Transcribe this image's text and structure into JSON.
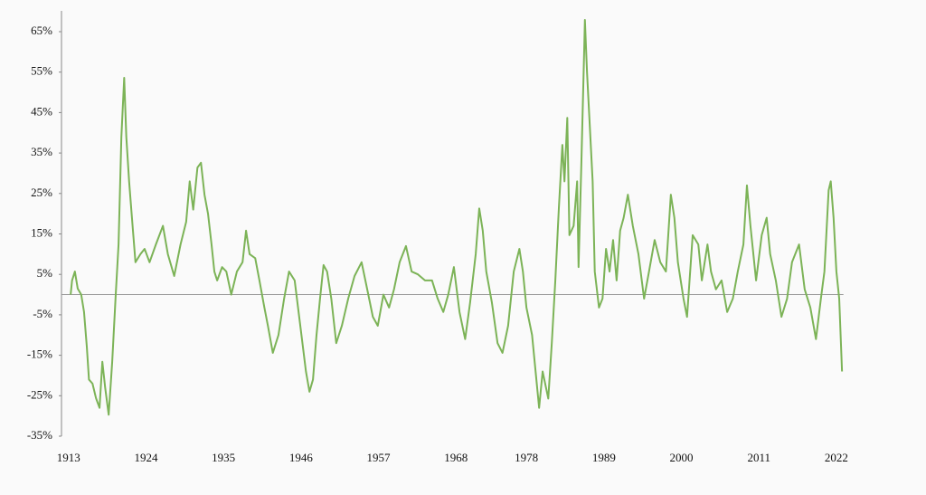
{
  "chart_data": {
    "type": "line",
    "x": [
      1913.3,
      1913.5,
      1913.9,
      1914.3,
      1914.8,
      1915.2,
      1915.6,
      1915.9,
      1916.4,
      1916.9,
      1917.4,
      1917.8,
      1918.2,
      1918.7,
      1919.2,
      1919.7,
      1920.1,
      1920.5,
      1920.9,
      1921.2,
      1921.6,
      1922.0,
      1922.5,
      1923.2,
      1923.8,
      1924.5,
      1925.4,
      1926.4,
      1927.1,
      1928.0,
      1928.9,
      1929.7,
      1930.2,
      1930.7,
      1931.3,
      1931.8,
      1932.3,
      1932.8,
      1933.3,
      1933.7,
      1934.1,
      1934.8,
      1935.4,
      1936.1,
      1936.9,
      1937.7,
      1938.2,
      1938.7,
      1939.5,
      1940.1,
      1940.8,
      1941.3,
      1942.0,
      1942.8,
      1943.6,
      1944.3,
      1945.1,
      1945.9,
      1946.7,
      1947.2,
      1947.7,
      1948.2,
      1948.7,
      1949.2,
      1949.7,
      1950.3,
      1951.0,
      1951.8,
      1952.7,
      1953.6,
      1954.6,
      1955.4,
      1956.2,
      1956.9,
      1957.7,
      1958.5,
      1959.2,
      1960.0,
      1960.9,
      1961.7,
      1962.6,
      1963.6,
      1964.6,
      1965.4,
      1966.2,
      1966.9,
      1967.7,
      1968.5,
      1969.3,
      1970.0,
      1970.8,
      1971.3,
      1971.8,
      1972.3,
      1973.1,
      1973.9,
      1974.6,
      1975.4,
      1976.2,
      1977.0,
      1977.5,
      1978.0,
      1978.8,
      1979.3,
      1979.8,
      1980.3,
      1981.1,
      1981.6,
      1982.1,
      1982.6,
      1983.1,
      1983.4,
      1983.8,
      1984.1,
      1984.7,
      1985.2,
      1985.4,
      1985.8,
      1986.2,
      1986.3,
      1986.6,
      1987.0,
      1987.4,
      1987.7,
      1988.3,
      1988.8,
      1989.3,
      1989.8,
      1990.3,
      1990.8,
      1991.3,
      1991.8,
      1992.4,
      1993.1,
      1993.9,
      1994.7,
      1995.4,
      1996.2,
      1997.0,
      1997.8,
      1998.5,
      1999.0,
      1999.5,
      2000.3,
      2000.8,
      2001.6,
      2002.4,
      2002.9,
      2003.7,
      2004.2,
      2004.9,
      2005.7,
      2006.5,
      2007.3,
      2008.0,
      2008.8,
      2009.3,
      2009.8,
      2010.6,
      2011.4,
      2012.1,
      2012.6,
      2013.4,
      2014.2,
      2015.0,
      2015.7,
      2016.7,
      2017.5,
      2018.3,
      2019.1,
      2019.8,
      2020.3,
      2020.9,
      2021.2,
      2021.6,
      2022.0,
      2022.4,
      2022.8
    ],
    "values": [
      0,
      3.5,
      5.7,
      1.5,
      0,
      -4.3,
      -13,
      -21,
      -22,
      -25.6,
      -28,
      -16.6,
      -23,
      -29.7,
      -16.6,
      0,
      12.4,
      39,
      53.6,
      39,
      28,
      19,
      8,
      10,
      11.3,
      8,
      12.4,
      17,
      10,
      4.6,
      12.4,
      18,
      28,
      21,
      31.4,
      32.6,
      24.7,
      20,
      12.4,
      5.7,
      3.5,
      6.8,
      5.7,
      0,
      5.7,
      8,
      15.8,
      10,
      9,
      3.5,
      -3.2,
      -7.7,
      -14.4,
      -10,
      -1,
      5.7,
      3.5,
      -7.7,
      -19,
      -24,
      -21,
      -10,
      -1,
      7.3,
      5.7,
      -1,
      -12,
      -7.7,
      -1,
      4.6,
      8,
      1.3,
      -5.5,
      -7.7,
      0,
      -3.2,
      1.3,
      8,
      12,
      5.7,
      5,
      3.5,
      3.5,
      -1,
      -4.3,
      0,
      6.8,
      -4.3,
      -11,
      -2,
      10,
      21.3,
      15.8,
      5.7,
      -2,
      -12,
      -14.4,
      -7.7,
      5.7,
      11.3,
      5.7,
      -3.2,
      -10,
      -19,
      -28,
      -19,
      -25.7,
      -12,
      3.5,
      21.3,
      37,
      28,
      43.7,
      14.7,
      17,
      28,
      6.8,
      32.6,
      60.5,
      67.9,
      55,
      41.5,
      28,
      5.7,
      -3.2,
      -1,
      11.3,
      5.7,
      13.5,
      3.5,
      15.8,
      19,
      24.7,
      17,
      10,
      -1,
      5.7,
      13.5,
      8,
      5.7,
      24.7,
      19,
      8,
      -1,
      -5.5,
      14.7,
      12.4,
      3.5,
      12.4,
      5.7,
      1.3,
      3.5,
      -4.3,
      -1,
      5.7,
      12.4,
      27,
      17,
      3.5,
      14.7,
      19,
      10,
      3.5,
      -5.5,
      -1,
      8,
      12.4,
      1.3,
      -3.2,
      -11,
      -1,
      5.7,
      25.8,
      28,
      19,
      5.7,
      -1,
      -19
    ],
    "color": "#7cb357",
    "xlim": [
      1912,
      2023
    ],
    "ylim": [
      -35,
      65
    ],
    "xticks": [
      1913,
      1924,
      1935,
      1946,
      1957,
      1968,
      1978,
      1989,
      2000,
      2011,
      2022
    ],
    "yticks": [
      {
        "value": -35,
        "label": "-35%"
      },
      {
        "value": -25,
        "label": "-25%"
      },
      {
        "value": -15,
        "label": "-15%"
      },
      {
        "value": -5,
        "label": "-5%"
      },
      {
        "value": 5,
        "label": "5%"
      },
      {
        "value": 15,
        "label": "15%"
      },
      {
        "value": 25,
        "label": "25%"
      },
      {
        "value": 35,
        "label": "35%"
      },
      {
        "value": 45,
        "label": "45%"
      },
      {
        "value": 55,
        "label": "55%"
      },
      {
        "value": 65,
        "label": "65%"
      }
    ]
  }
}
